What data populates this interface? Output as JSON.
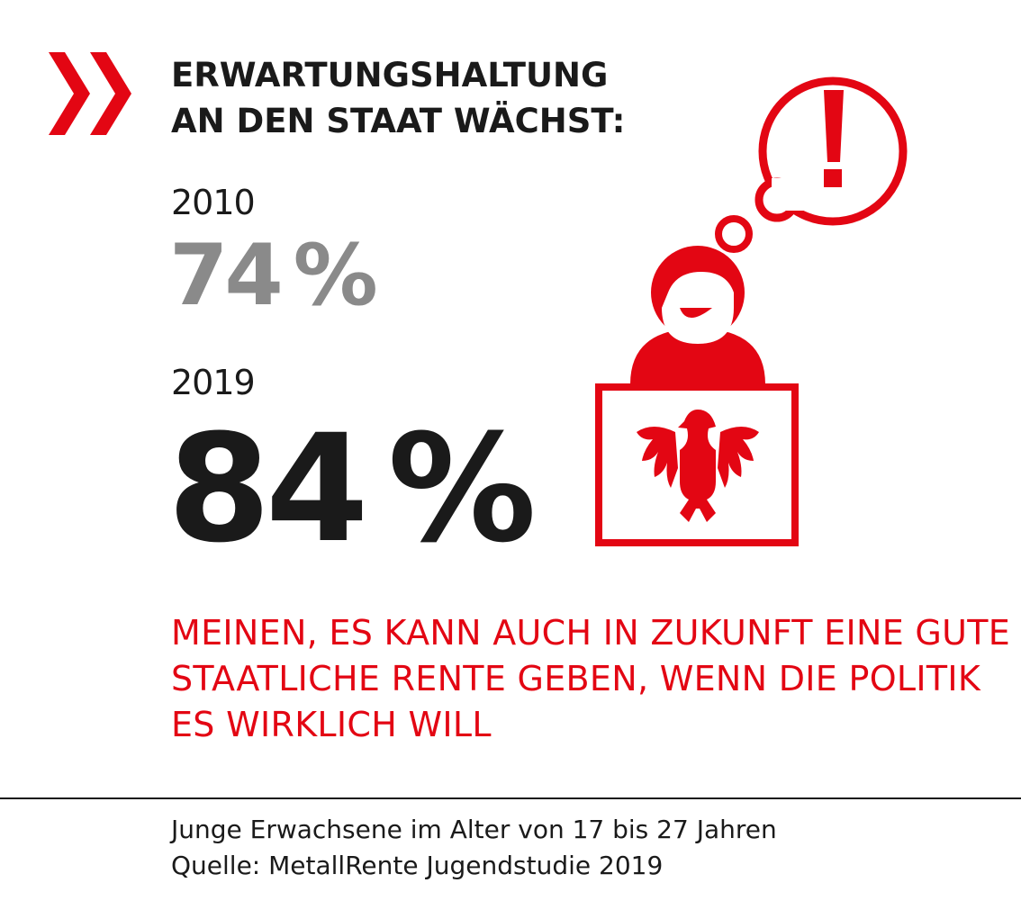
{
  "headline": {
    "line1": "ERWARTUNGSHALTUNG",
    "line2": "AN DEN STAAT WÄCHST:"
  },
  "stats": [
    {
      "year": "2010",
      "value": "74 %"
    },
    {
      "year": "2019",
      "value": "84 %"
    }
  ],
  "statement": {
    "line1": "MEINEN, ES KANN AUCH IN ZUKUNFT EINE GUTE",
    "line2": "STAATLICHE RENTE GEBEN, WENN DIE POLITIK",
    "line3": "ES WIRKLICH WILL"
  },
  "footnote": {
    "line1": "Junge Erwachsene im Alter von 17 bis 27 Jahren",
    "line2": "Quelle: MetallRente Jugendstudie 2019"
  },
  "colors": {
    "accent": "#e30613",
    "text": "#1a1a1a",
    "muted": "#8a8a8a"
  },
  "icons": [
    "double-chevron-icon",
    "exclamation-icon",
    "person-icon",
    "federal-eagle-icon"
  ]
}
